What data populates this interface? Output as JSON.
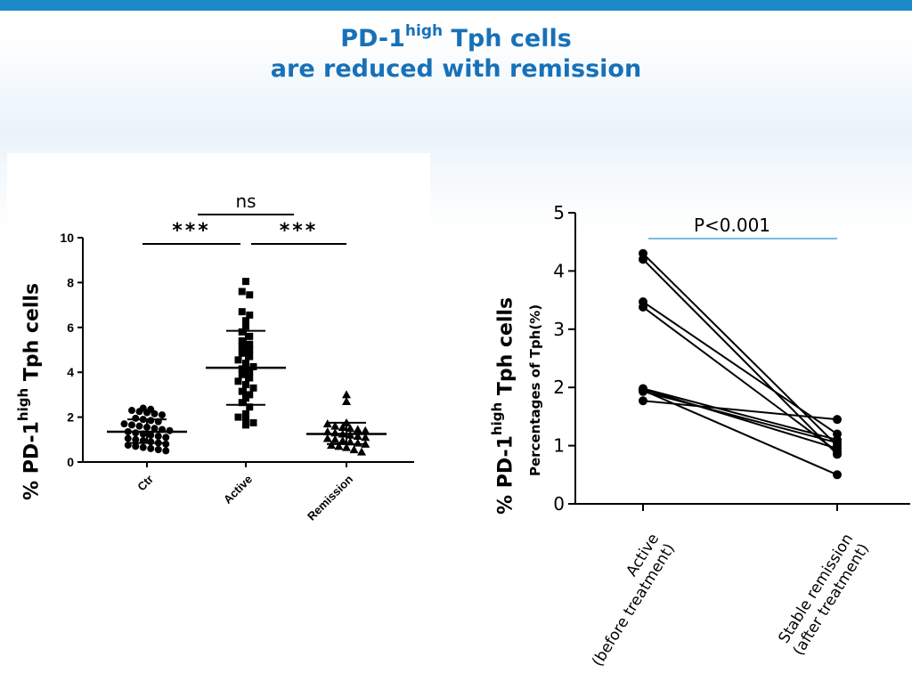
{
  "header": {
    "title_prefix": "PD-1",
    "title_sup": "high",
    "title_rest": " Tph cells",
    "title_line2": "are reduced with remission"
  },
  "colors": {
    "accent": "#1a8ac9",
    "title": "#1771b8",
    "pline": "#4aa8d0"
  },
  "chart_data": [
    {
      "type": "scatter",
      "ylabel_prefix": "% PD-1",
      "ylabel_sup": "high",
      "ylabel_rest": " Tph cells",
      "categories": [
        "Ctr",
        "Active",
        "Remission"
      ],
      "ylim": [
        0,
        10
      ],
      "yticks": [
        "0",
        "2",
        "4",
        "6",
        "8",
        "10"
      ],
      "groups": [
        {
          "name": "Ctr",
          "marker": "circle",
          "mean": 1.35,
          "sd_low": 0.85,
          "sd_high": 1.9,
          "values": [
            2.4,
            2.35,
            2.3,
            2.25,
            2.2,
            2.15,
            2.1,
            1.95,
            1.9,
            1.85,
            1.8,
            1.7,
            1.65,
            1.6,
            1.55,
            1.5,
            1.45,
            1.4,
            1.35,
            1.3,
            1.25,
            1.2,
            1.15,
            1.1,
            1.05,
            1.0,
            0.95,
            0.9,
            0.85,
            0.8,
            0.75,
            0.7,
            0.65,
            0.6,
            0.55,
            0.5
          ]
        },
        {
          "name": "Active",
          "marker": "square",
          "mean": 4.2,
          "sd_low": 2.55,
          "sd_high": 5.85,
          "values": [
            8.05,
            7.6,
            7.45,
            6.7,
            6.55,
            6.3,
            6.05,
            5.8,
            5.6,
            5.4,
            5.25,
            5.15,
            5.0,
            4.85,
            4.7,
            4.55,
            4.4,
            4.25,
            4.15,
            4.05,
            3.9,
            3.75,
            3.6,
            3.45,
            3.3,
            3.15,
            3.0,
            2.85,
            2.65,
            2.45,
            2.15,
            2.0,
            1.85,
            1.75,
            1.65
          ]
        },
        {
          "name": "Remission",
          "marker": "triangle",
          "mean": 1.25,
          "sd_low": 0.8,
          "sd_high": 1.75,
          "values": [
            3.0,
            2.7,
            1.75,
            1.7,
            1.6,
            1.55,
            1.5,
            1.45,
            1.4,
            1.35,
            1.3,
            1.25,
            1.2,
            1.15,
            1.1,
            1.05,
            1.0,
            0.95,
            0.9,
            0.85,
            0.8,
            0.75,
            0.7,
            0.65,
            0.55,
            0.45
          ]
        }
      ],
      "annotations": [
        {
          "label": "***",
          "from": "Ctr",
          "to": "Active"
        },
        {
          "label": "***",
          "from": "Active",
          "to": "Remission"
        },
        {
          "label": "ns",
          "from": "Ctr",
          "to": "Remission"
        }
      ]
    },
    {
      "type": "line",
      "ylabel_prefix": "% PD-1",
      "ylabel_sup": "high",
      "ylabel_rest": " Tph cells",
      "ylabel2": "Percentages of Tph(%)",
      "categories": [
        "Active\n(before treatment)",
        "Stable remission\n(after treatment)"
      ],
      "ylim": [
        0,
        5
      ],
      "yticks": [
        "0",
        "1",
        "2",
        "3",
        "4",
        "5"
      ],
      "pvalue": "P<0.001",
      "pairs": [
        [
          4.3,
          1.0
        ],
        [
          4.2,
          0.85
        ],
        [
          3.47,
          1.2
        ],
        [
          3.38,
          0.9
        ],
        [
          1.98,
          1.1
        ],
        [
          1.97,
          0.95
        ],
        [
          1.95,
          0.5
        ],
        [
          1.93,
          1.05
        ],
        [
          1.77,
          1.45
        ]
      ]
    }
  ]
}
